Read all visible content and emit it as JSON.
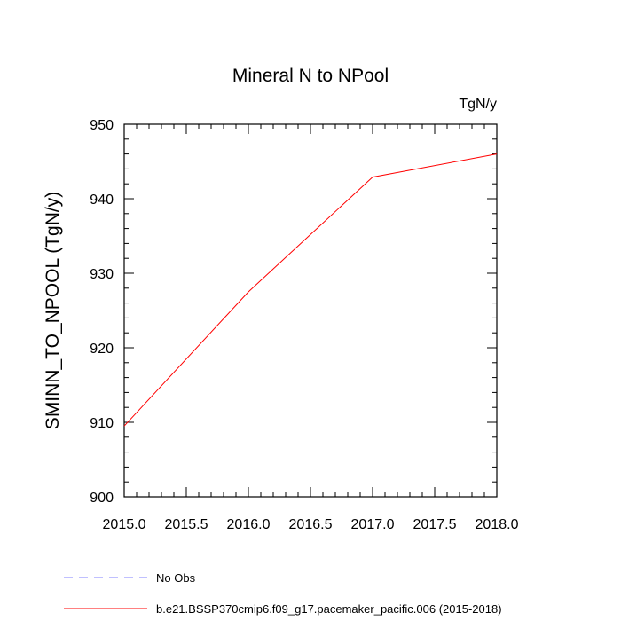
{
  "chart_data": {
    "type": "line",
    "title": "Mineral N to NPool",
    "units": "TgN/y",
    "ylabel": "SMINN_TO_NPOOL  (TgN/y)",
    "xlabel": "",
    "xlim": [
      2015.0,
      2018.0
    ],
    "ylim": [
      900,
      950
    ],
    "xticks": [
      "2015.0",
      "2015.5",
      "2016.0",
      "2016.5",
      "2017.0",
      "2017.5",
      "2018.0"
    ],
    "yticks": [
      "900",
      "910",
      "920",
      "930",
      "940",
      "950"
    ],
    "series": [
      {
        "name": "b.e21.BSSP370cmip6.f09_g17.pacemaker_pacific.006 (2015-2018)",
        "color": "#ff0000",
        "style": "solid",
        "x": [
          2015.0,
          2016.0,
          2017.0,
          2018.0
        ],
        "y": [
          909.5,
          927.5,
          942.9,
          946.0
        ]
      }
    ],
    "legend": [
      {
        "label": "No Obs",
        "color": "#8080ff",
        "style": "dashed"
      },
      {
        "label": "b.e21.BSSP370cmip6.f09_g17.pacemaker_pacific.006 (2015-2018)",
        "color": "#ff0000",
        "style": "solid"
      }
    ],
    "legend_position": "bottom-left"
  }
}
